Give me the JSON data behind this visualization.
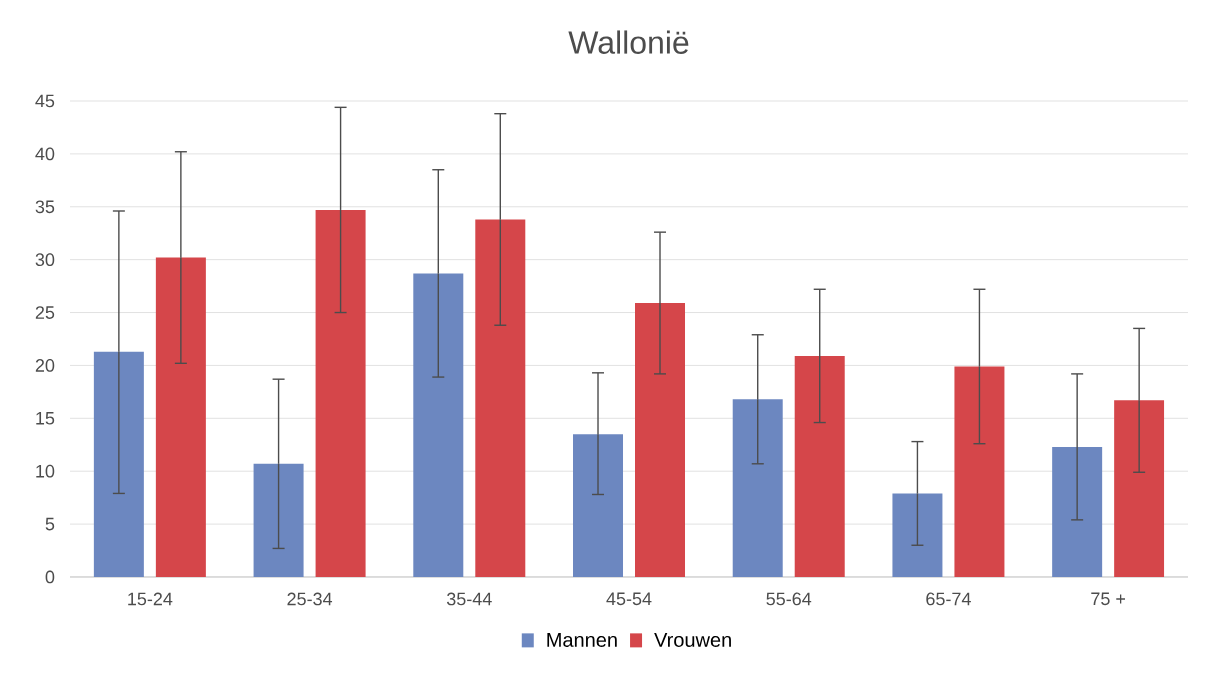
{
  "chart_data": {
    "type": "bar",
    "title": "Wallonië",
    "categories": [
      "15-24",
      "25-34",
      "35-44",
      "45-54",
      "55-64",
      "65-74",
      "75 +"
    ],
    "series": [
      {
        "name": "Mannen",
        "color": "#6c87c0",
        "values": [
          21.3,
          10.7,
          28.7,
          13.5,
          16.8,
          7.9,
          12.3
        ],
        "errors": [
          [
            7.9,
            34.6
          ],
          [
            2.7,
            18.7
          ],
          [
            18.9,
            38.5
          ],
          [
            7.8,
            19.3
          ],
          [
            10.7,
            22.9
          ],
          [
            3.0,
            12.8
          ],
          [
            5.4,
            19.2
          ]
        ]
      },
      {
        "name": "Vrouwen",
        "color": "#d5464a",
        "values": [
          30.2,
          34.7,
          33.8,
          25.9,
          20.9,
          19.9,
          16.7
        ],
        "errors": [
          [
            20.2,
            40.2
          ],
          [
            25.0,
            44.4
          ],
          [
            23.8,
            43.8
          ],
          [
            19.2,
            32.6
          ],
          [
            14.6,
            27.2
          ],
          [
            12.6,
            27.2
          ],
          [
            9.9,
            23.5
          ]
        ]
      }
    ],
    "ylim": [
      0,
      45
    ],
    "yticks": [
      0,
      5,
      10,
      15,
      20,
      25,
      30,
      35,
      40,
      45
    ],
    "grid": "y",
    "legend": "bottom"
  }
}
